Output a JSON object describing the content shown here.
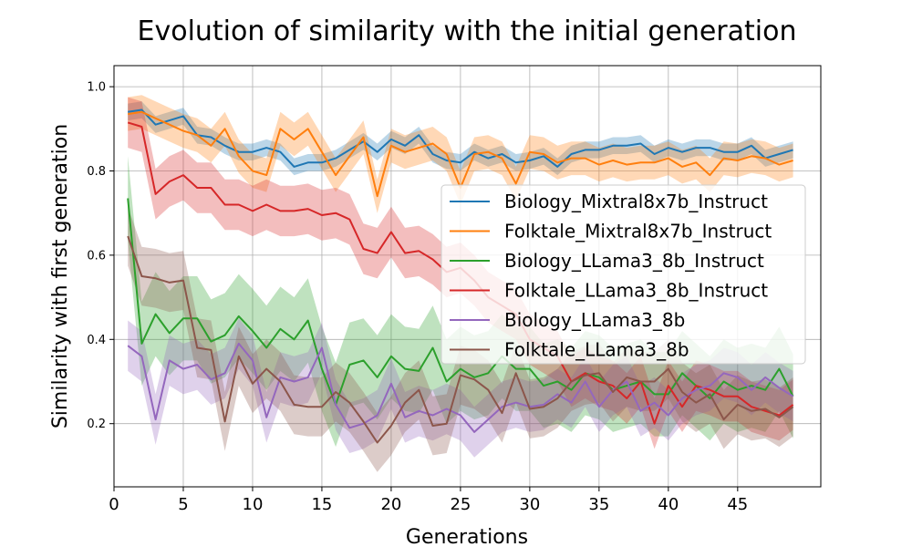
{
  "chart_data": {
    "type": "line",
    "title": "Evolution of similarity with the initial generation",
    "xlabel": "Generations",
    "ylabel": "Similarity with first generation",
    "xlim": [
      0,
      51
    ],
    "ylim": [
      0.05,
      1.05
    ],
    "xticks": [
      0,
      5,
      10,
      15,
      20,
      25,
      30,
      35,
      40,
      45
    ],
    "xtick_labels": [
      "0",
      "5",
      "10",
      "15",
      "20",
      "25",
      "30",
      "35",
      "40",
      "45"
    ],
    "yticks": [
      0.2,
      0.4,
      0.6,
      0.8,
      1.0
    ],
    "ytick_labels": [
      "0.2",
      "0.4",
      "0.6",
      "0.8",
      "1.0"
    ],
    "grid": true,
    "legend_position": "center-right",
    "x": [
      1,
      2,
      3,
      4,
      5,
      6,
      7,
      8,
      9,
      10,
      11,
      12,
      13,
      14,
      15,
      16,
      17,
      18,
      19,
      20,
      21,
      22,
      23,
      24,
      25,
      26,
      27,
      28,
      29,
      30,
      31,
      32,
      33,
      34,
      35,
      36,
      37,
      38,
      39,
      40,
      41,
      42,
      43,
      44,
      45,
      46,
      47,
      48,
      49
    ],
    "series": [
      {
        "name": "Biology_Mixtral8x7b_Instruct",
        "color": "#1f77b4",
        "values": [
          0.94,
          0.945,
          0.91,
          0.92,
          0.93,
          0.885,
          0.88,
          0.86,
          0.845,
          0.845,
          0.855,
          0.845,
          0.81,
          0.82,
          0.82,
          0.83,
          0.85,
          0.87,
          0.845,
          0.875,
          0.86,
          0.885,
          0.84,
          0.825,
          0.82,
          0.845,
          0.83,
          0.84,
          0.82,
          0.825,
          0.835,
          0.81,
          0.84,
          0.85,
          0.85,
          0.86,
          0.86,
          0.865,
          0.84,
          0.855,
          0.845,
          0.855,
          0.855,
          0.845,
          0.845,
          0.86,
          0.83,
          0.84,
          0.85
        ],
        "band": 0.02
      },
      {
        "name": "Folktale_Mixtral8x7b_Instruct",
        "color": "#ff7f0e",
        "values": [
          0.935,
          0.94,
          0.925,
          0.91,
          0.895,
          0.885,
          0.86,
          0.9,
          0.835,
          0.8,
          0.79,
          0.9,
          0.875,
          0.9,
          0.845,
          0.79,
          0.835,
          0.88,
          0.74,
          0.86,
          0.845,
          0.855,
          0.865,
          0.84,
          0.76,
          0.84,
          0.845,
          0.83,
          0.77,
          0.845,
          0.84,
          0.82,
          0.83,
          0.83,
          0.815,
          0.825,
          0.815,
          0.82,
          0.82,
          0.83,
          0.81,
          0.82,
          0.79,
          0.83,
          0.825,
          0.835,
          0.83,
          0.815,
          0.825
        ],
        "band": 0.04
      },
      {
        "name": "Biology_LLama3_8b_Instruct",
        "color": "#2ca02c",
        "values": [
          0.735,
          0.39,
          0.46,
          0.415,
          0.45,
          0.45,
          0.395,
          0.41,
          0.455,
          0.42,
          0.38,
          0.425,
          0.4,
          0.445,
          0.33,
          0.245,
          0.34,
          0.35,
          0.31,
          0.36,
          0.33,
          0.325,
          0.38,
          0.3,
          0.33,
          0.31,
          0.32,
          0.36,
          0.33,
          0.33,
          0.29,
          0.3,
          0.28,
          0.32,
          0.31,
          0.28,
          0.29,
          0.3,
          0.27,
          0.27,
          0.32,
          0.29,
          0.26,
          0.3,
          0.28,
          0.29,
          0.28,
          0.33,
          0.265
        ],
        "band": 0.1
      },
      {
        "name": "Folktale_LLama3_8b_Instruct",
        "color": "#d62728",
        "values": [
          0.915,
          0.905,
          0.745,
          0.775,
          0.79,
          0.76,
          0.76,
          0.72,
          0.72,
          0.705,
          0.72,
          0.705,
          0.705,
          0.71,
          0.695,
          0.7,
          0.685,
          0.615,
          0.605,
          0.655,
          0.605,
          0.61,
          0.59,
          0.56,
          0.57,
          0.54,
          0.5,
          0.48,
          0.46,
          0.4,
          0.38,
          0.36,
          0.3,
          0.32,
          0.3,
          0.29,
          0.26,
          0.3,
          0.2,
          0.29,
          0.24,
          0.29,
          0.28,
          0.265,
          0.265,
          0.24,
          0.23,
          0.22,
          0.245
        ],
        "band": 0.06
      },
      {
        "name": "Biology_LLama3_8b",
        "color": "#9467bd",
        "values": [
          0.385,
          0.36,
          0.21,
          0.35,
          0.33,
          0.34,
          0.305,
          0.32,
          0.39,
          0.35,
          0.215,
          0.31,
          0.3,
          0.31,
          0.38,
          0.245,
          0.19,
          0.2,
          0.22,
          0.295,
          0.215,
          0.23,
          0.22,
          0.235,
          0.22,
          0.18,
          0.21,
          0.24,
          0.25,
          0.24,
          0.245,
          0.27,
          0.25,
          0.3,
          0.24,
          0.28,
          0.3,
          0.23,
          0.25,
          0.22,
          0.26,
          0.28,
          0.29,
          0.32,
          0.31,
          0.28,
          0.31,
          0.285,
          0.265
        ],
        "band": 0.06
      },
      {
        "name": "Folktale_LLama3_8b",
        "color": "#8c564b",
        "values": [
          0.645,
          0.55,
          0.545,
          0.535,
          0.54,
          0.38,
          0.375,
          0.205,
          0.36,
          0.295,
          0.33,
          0.3,
          0.245,
          0.24,
          0.24,
          0.275,
          0.25,
          0.205,
          0.155,
          0.195,
          0.25,
          0.28,
          0.195,
          0.2,
          0.315,
          0.305,
          0.28,
          0.225,
          0.32,
          0.235,
          0.24,
          0.26,
          0.3,
          0.315,
          0.32,
          0.275,
          0.31,
          0.3,
          0.3,
          0.33,
          0.275,
          0.25,
          0.27,
          0.21,
          0.245,
          0.23,
          0.235,
          0.215,
          0.24
        ],
        "band": 0.07
      }
    ]
  }
}
